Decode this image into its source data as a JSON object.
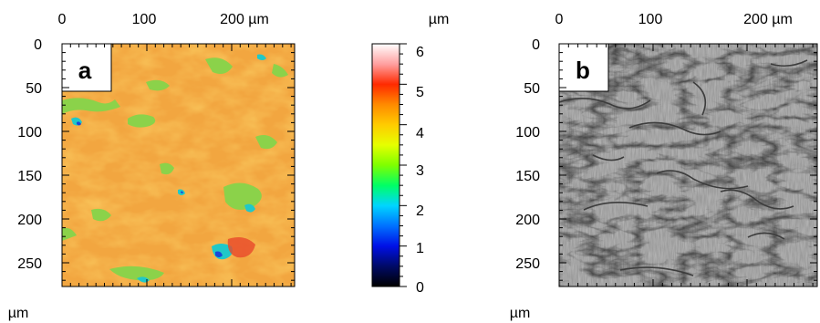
{
  "panel_a": {
    "label": "a",
    "x_ticks": [
      "0",
      "100",
      "200 µm"
    ],
    "y_ticks": [
      "0",
      "50",
      "100",
      "150",
      "200",
      "250"
    ],
    "y_unit": "µm"
  },
  "panel_b": {
    "label": "b",
    "x_ticks": [
      "0",
      "100",
      "200 µm"
    ],
    "y_ticks": [
      "0",
      "50",
      "100",
      "150",
      "200",
      "250"
    ],
    "y_unit": "µm"
  },
  "colorbar": {
    "unit": "µm",
    "ticks": [
      "6",
      "5",
      "4",
      "3",
      "2",
      "1",
      "0"
    ],
    "colors": {
      "top": "#ffffff",
      "c55": "#ff9f9f",
      "c5": "#ff2a00",
      "c45": "#ff8a00",
      "c4": "#ffcc00",
      "c35": "#e6ff00",
      "c3": "#7fff00",
      "c25": "#00ff66",
      "c2": "#00d5ff",
      "c15": "#0072ff",
      "c1": "#0010e6",
      "c05": "#000a66",
      "bottom": "#000000"
    }
  },
  "heightmap_colors": {
    "base": "#f2a640",
    "low": "#e88f2a",
    "high": "#f9c45a",
    "green": "#8bd24a",
    "cyan": "#20c8c8",
    "blue": "#1848d8",
    "red": "#e8482a"
  },
  "shaded_colors": {
    "base": "#9a9a9a",
    "light": "#bdbdbd",
    "dark": "#3c3c3c"
  }
}
